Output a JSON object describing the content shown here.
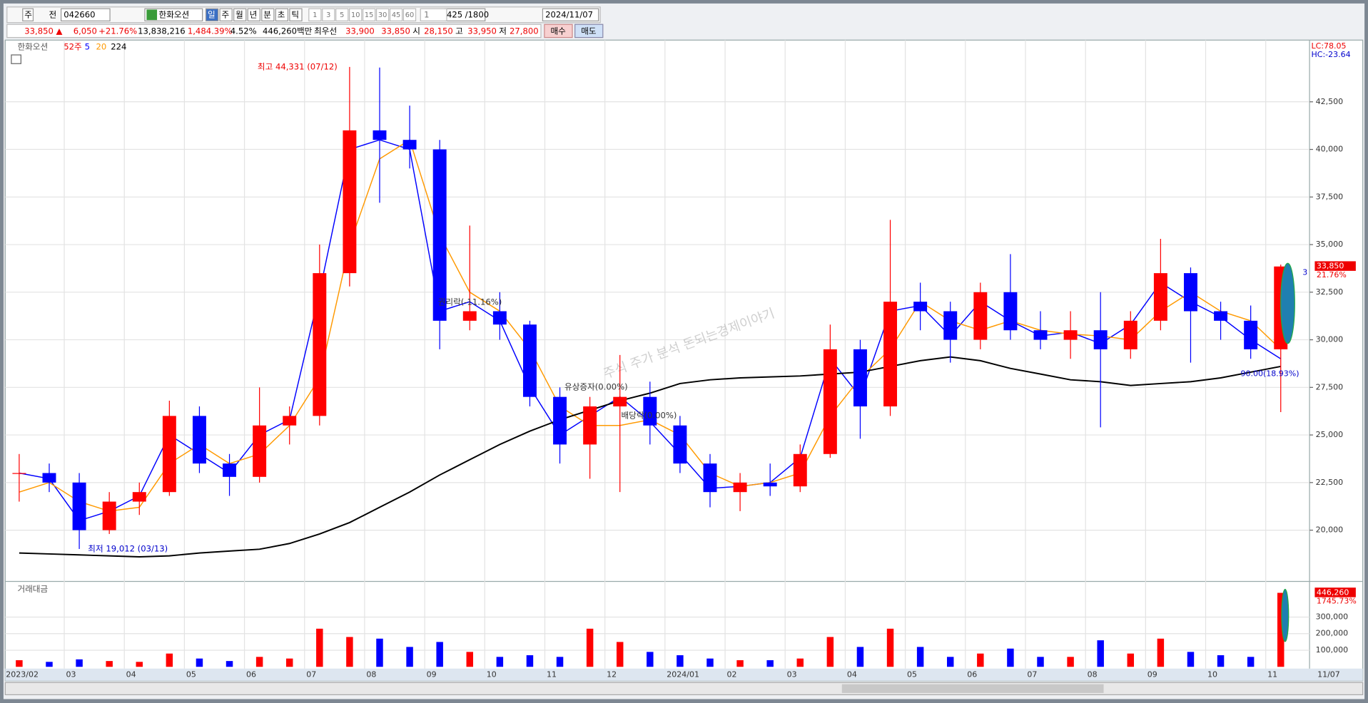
{
  "toolbar": {
    "market": "주",
    "prev": "전",
    "code": "042660",
    "name": "한화오션",
    "periods": [
      "일",
      "주",
      "월",
      "년",
      "분",
      "초",
      "틱"
    ],
    "intervals": [
      "1",
      "3",
      "5",
      "10",
      "15",
      "30",
      "45",
      "60"
    ],
    "unit": "1",
    "count": "425",
    "max": "/1800",
    "date": "2024/11/07"
  },
  "quote_bar": {
    "price": "33,850 ▲",
    "change": "6,050",
    "rate": "+21.76%",
    "volume": "13,838,216",
    "volume_rate": "1,484.39%",
    "turnover": "4.52%",
    "amount": "446,260백만",
    "best_label": "최우선",
    "ask": "33,900",
    "bid": "33,850",
    "open_label": "시",
    "open": "28,150",
    "high_label": "고",
    "high": "33,950",
    "low_label": "저",
    "low": "27,800",
    "buy": "매수",
    "sell": "매도"
  },
  "chart_data": [
    {
      "type": "candlestick",
      "stock_name": "한화오션",
      "range_label": "52주",
      "categories": [
        "2023/02",
        null,
        "03",
        null,
        "04",
        null,
        "05",
        null,
        "06",
        null,
        "07",
        null,
        "08",
        null,
        "09",
        null,
        "10",
        null,
        "11",
        null,
        "12",
        null,
        "2024/01",
        null,
        "02",
        null,
        "03",
        null,
        "04",
        null,
        "05",
        null,
        "06",
        null,
        "07",
        null,
        "08",
        null,
        "09",
        null,
        "10",
        null,
        "11"
      ],
      "open": [
        23000,
        23000,
        22500,
        20000,
        21500,
        22000,
        26000,
        23500,
        22800,
        25500,
        26000,
        33500,
        41000,
        40500,
        40000,
        31000,
        31500,
        30800,
        27000,
        24500,
        26500,
        27000,
        25500,
        23500,
        22000,
        22500,
        22300,
        24000,
        29500,
        26500,
        32000,
        31500,
        30000,
        32500,
        30500,
        30000,
        30500,
        29500,
        31000,
        33500,
        31500,
        31000,
        29500
      ],
      "high": [
        24000,
        23500,
        23000,
        22000,
        22500,
        26800,
        26500,
        24000,
        27500,
        26500,
        35000,
        44331,
        44300,
        42300,
        40500,
        36000,
        32500,
        31000,
        27500,
        27000,
        29200,
        27800,
        26000,
        24000,
        23000,
        23500,
        24500,
        30800,
        30000,
        36300,
        33000,
        32000,
        33000,
        34500,
        31500,
        31500,
        32500,
        31500,
        35300,
        33800,
        32000,
        31800,
        33950
      ],
      "low": [
        21500,
        22000,
        19012,
        19800,
        20800,
        21800,
        23000,
        21800,
        22500,
        24500,
        25500,
        32800,
        37200,
        39000,
        29500,
        30500,
        30000,
        26500,
        23500,
        22700,
        22000,
        24500,
        23000,
        21200,
        21000,
        21800,
        22000,
        23800,
        24800,
        26000,
        30500,
        28800,
        29500,
        30000,
        29500,
        29000,
        25400,
        29000,
        30500,
        28800,
        30000,
        29000,
        26200
      ],
      "close": [
        23000,
        22500,
        20000,
        21500,
        22000,
        26000,
        23500,
        22800,
        25500,
        26000,
        33500,
        41000,
        40500,
        40000,
        31000,
        31500,
        30800,
        27000,
        24500,
        26500,
        27000,
        25500,
        23500,
        22000,
        22500,
        22300,
        24000,
        29500,
        26500,
        32000,
        31500,
        30000,
        32500,
        30500,
        30000,
        30500,
        29500,
        31000,
        33500,
        31500,
        31000,
        29500,
        33850
      ],
      "up_color": "#ff0000",
      "down_color": "#0000ff",
      "series": [
        {
          "name": "5",
          "color": "#0000ff",
          "values": [
            23000,
            22700,
            20500,
            21000,
            21800,
            25000,
            24000,
            23000,
            25000,
            25800,
            32500,
            40000,
            40500,
            40000,
            31500,
            32000,
            31000,
            27500,
            25000,
            26000,
            27000,
            25700,
            24000,
            22200,
            22300,
            22500,
            23800,
            29000,
            27000,
            31500,
            31800,
            30200,
            32000,
            31000,
            30200,
            30400,
            29800,
            30800,
            33000,
            32000,
            31200,
            30000,
            29000
          ]
        },
        {
          "name": "20",
          "color": "#ff9900",
          "values": [
            22000,
            22500,
            21500,
            21000,
            21200,
            23500,
            24500,
            23500,
            24000,
            25500,
            28000,
            35000,
            39500,
            40500,
            35500,
            32500,
            31500,
            29500,
            26500,
            25500,
            25500,
            25800,
            25000,
            23000,
            22300,
            22500,
            23000,
            26000,
            28000,
            29500,
            32000,
            31000,
            30500,
            31000,
            30500,
            30300,
            30200,
            30000,
            31500,
            32500,
            31500,
            31000,
            29500
          ]
        },
        {
          "name": "224",
          "color": "#000000",
          "values": [
            18800,
            18750,
            18700,
            18650,
            18600,
            18650,
            18800,
            18900,
            19000,
            19300,
            19800,
            20400,
            21200,
            22000,
            22900,
            23700,
            24500,
            25200,
            25800,
            26300,
            26800,
            27200,
            27700,
            27900,
            28000,
            28050,
            28100,
            28200,
            28300,
            28600,
            28900,
            29100,
            28900,
            28500,
            28200,
            27900,
            27800,
            27600,
            27700,
            27800,
            28000,
            28300,
            28600
          ]
        }
      ],
      "ylim": [
        17400,
        45650
      ],
      "yticks": [
        {
          "value": 20000,
          "label": "20,000"
        },
        {
          "value": 22500,
          "label": "22,500"
        },
        {
          "value": 25000,
          "label": "25,000"
        },
        {
          "value": 27500,
          "label": "27,500"
        },
        {
          "value": 30000,
          "label": "30,000"
        },
        {
          "value": 32500,
          "label": "32,500"
        },
        {
          "value": 35000,
          "label": "35,000"
        },
        {
          "value": 37500,
          "label": "37,500"
        },
        {
          "value": 40000,
          "label": "40,000"
        },
        {
          "value": 42500,
          "label": "42,500"
        }
      ],
      "grid": true,
      "annotations": {
        "high": "최고 44,331 (07/12)",
        "low": "최저 19,012 (03/13)",
        "rights": "권리락(-11.16%)",
        "offering": "유상증자(0.00%)",
        "bonus": "배당락(0.00%)",
        "target": "90.00(18.93%)",
        "watermark": "주식 주가 분석 돈되는경제이야기"
      },
      "right_labels": {
        "lc": "LC:78.05",
        "hc": "HC:-23.64",
        "current": {
          "value": 33850,
          "label": "33,850"
        },
        "rate": "21.76%",
        "count": "3"
      },
      "end_date": "11/07"
    },
    {
      "type": "bar",
      "title": "거래대금",
      "values": [
        40000,
        30000,
        45000,
        35000,
        30000,
        80000,
        50000,
        35000,
        60000,
        50000,
        230000,
        180000,
        170000,
        120000,
        150000,
        90000,
        60000,
        70000,
        60000,
        230000,
        150000,
        90000,
        70000,
        50000,
        40000,
        40000,
        50000,
        180000,
        120000,
        230000,
        120000,
        60000,
        80000,
        110000,
        60000,
        60000,
        160000,
        80000,
        170000,
        90000,
        70000,
        60000,
        446260
      ],
      "value_labels_last": "446,260",
      "rate": "1745.73%",
      "ylim": [
        0,
        489000
      ],
      "yticks": [
        {
          "value": 100000,
          "label": "100,000"
        },
        {
          "value": 200000,
          "label": "200,000"
        },
        {
          "value": 300000,
          "label": "300,000"
        }
      ]
    }
  ]
}
